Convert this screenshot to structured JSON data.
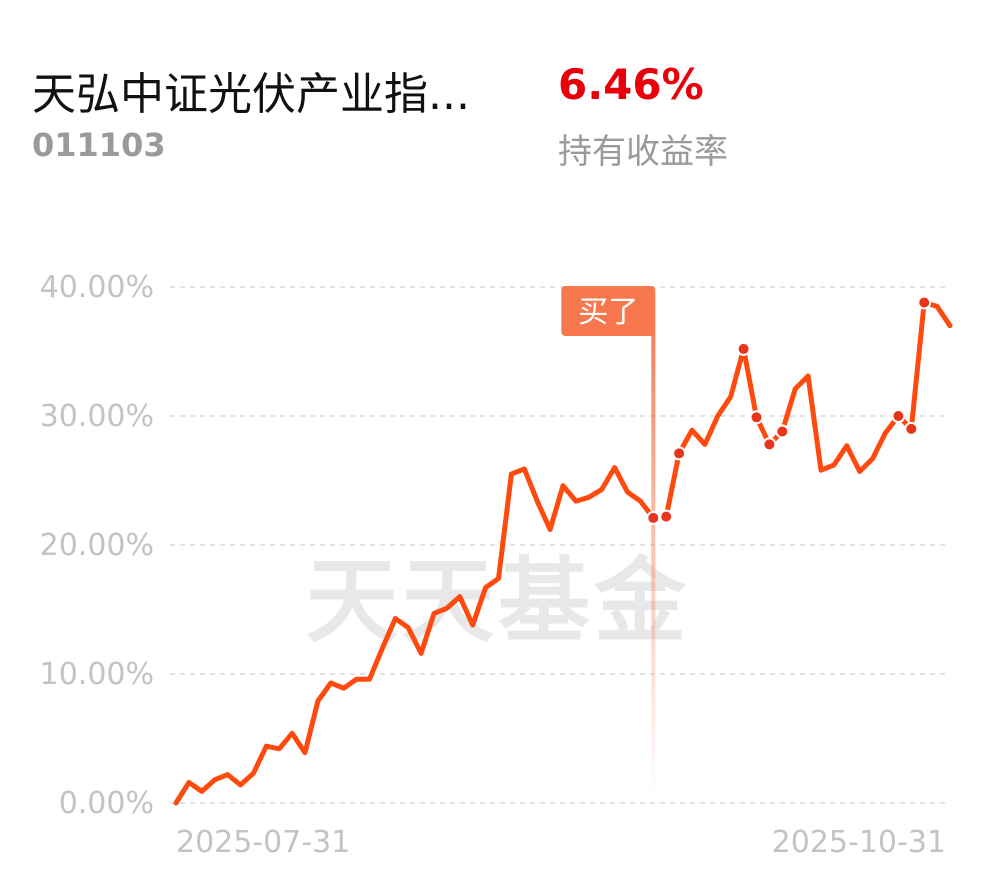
{
  "header": {
    "fund_name": "天弘中证光伏产业指...",
    "fund_code": "011103",
    "return_value": "6.46%",
    "return_label": "持有收益率"
  },
  "watermark": "天天基金",
  "colors": {
    "line": "#fe4a0e",
    "return": "#e8000b",
    "buy_marker": "#f7784e",
    "grid": "#e3e3e3",
    "axis_text": "#c3c3c3"
  },
  "chart_data": {
    "type": "line",
    "title": "",
    "xlabel": "",
    "ylabel": "",
    "x_tick_labels": [
      "2025-07-31",
      "2025-10-31"
    ],
    "y_ticks": [
      "0.00%",
      "10.00%",
      "20.00%",
      "30.00%",
      "40.00%"
    ],
    "ylim": [
      0,
      40
    ],
    "grid": true,
    "series": [
      {
        "values": [
          0.0,
          1.6,
          0.9,
          1.8,
          2.2,
          1.4,
          2.3,
          4.4,
          4.2,
          5.4,
          3.9,
          7.9,
          9.3,
          8.9,
          9.6,
          9.6,
          12.0,
          14.3,
          13.6,
          11.6,
          14.7,
          15.1,
          16.0,
          13.8,
          16.7,
          17.4,
          25.5,
          25.9,
          23.4,
          21.2,
          24.6,
          23.4,
          23.7,
          24.3,
          26.0,
          24.1,
          23.4,
          22.1,
          22.2,
          27.1,
          28.9,
          27.8,
          30.0,
          31.5,
          35.2,
          29.9,
          27.8,
          28.8,
          32.1,
          33.1,
          25.8,
          26.2,
          27.7,
          25.7,
          26.7,
          28.7,
          30.0,
          29.0,
          38.8,
          38.5,
          37.0
        ],
        "marked_points": [
          37,
          38,
          39,
          44,
          45,
          46,
          47,
          56,
          57,
          58
        ]
      }
    ],
    "annotations": [
      {
        "label": "买了",
        "index": 37
      }
    ]
  }
}
